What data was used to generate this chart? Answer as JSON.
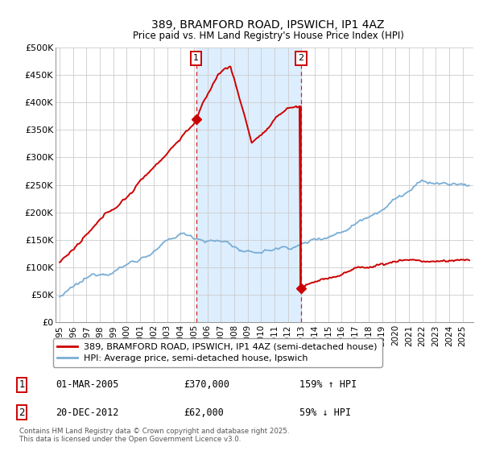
{
  "title": "389, BRAMFORD ROAD, IPSWICH, IP1 4AZ",
  "subtitle": "Price paid vs. HM Land Registry's House Price Index (HPI)",
  "ylabel_ticks": [
    "£0",
    "£50K",
    "£100K",
    "£150K",
    "£200K",
    "£250K",
    "£300K",
    "£350K",
    "£400K",
    "£450K",
    "£500K"
  ],
  "ytick_vals": [
    0,
    50000,
    100000,
    150000,
    200000,
    250000,
    300000,
    350000,
    400000,
    450000,
    500000
  ],
  "ylim": [
    0,
    500000
  ],
  "xlim_start": 1994.7,
  "xlim_end": 2025.8,
  "marker1_x": 2005.17,
  "marker2_x": 2012.97,
  "marker1_val": 370000,
  "marker2_val": 62000,
  "marker1_label": "1",
  "marker2_label": "2",
  "red_color": "#cc0000",
  "blue_color": "#7aaed6",
  "shade_color": "#ddeeff",
  "line1_label": "389, BRAMFORD ROAD, IPSWICH, IP1 4AZ (semi-detached house)",
  "line2_label": "HPI: Average price, semi-detached house, Ipswich",
  "annotation1": [
    "1",
    "01-MAR-2005",
    "£370,000",
    "159% ↑ HPI"
  ],
  "annotation2": [
    "2",
    "20-DEC-2012",
    "£62,000",
    "59% ↓ HPI"
  ],
  "footer": "Contains HM Land Registry data © Crown copyright and database right 2025.\nThis data is licensed under the Open Government Licence v3.0.",
  "bg_color": "#ffffff",
  "grid_color": "#cccccc"
}
